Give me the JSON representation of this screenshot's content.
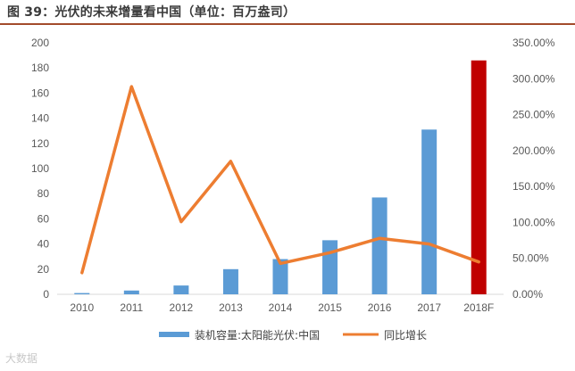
{
  "figure": {
    "title": "图 39：光伏的未来增量看中国（单位：百万盎司）",
    "watermark": "大数据"
  },
  "colors": {
    "bar": "#5b9bd5",
    "highlight_bar": "#c00000",
    "line": "#ed7d31",
    "axis": "#d9d9d9",
    "title_rule": "#a34b2b"
  },
  "chart_data": {
    "type": "bar",
    "categories": [
      "2010",
      "2011",
      "2012",
      "2013",
      "2014",
      "2015",
      "2016",
      "2017",
      "2018F"
    ],
    "series": [
      {
        "name": "装机容量:太阳能光伏:中国",
        "type": "bar",
        "axis": "left",
        "values": [
          1,
          3,
          7,
          20,
          28,
          43,
          77,
          131,
          186
        ],
        "highlight_index": 8
      },
      {
        "name": "同比增长",
        "type": "line",
        "axis": "right",
        "values": [
          30,
          289,
          101,
          185,
          43,
          58,
          78,
          70,
          45
        ]
      }
    ],
    "y_left": {
      "min": 0,
      "max": 200,
      "ticks": [
        0,
        20,
        40,
        60,
        80,
        100,
        120,
        140,
        160,
        180,
        200
      ]
    },
    "y_right": {
      "min": 0,
      "max": 350,
      "tick_labels": [
        "0.00%",
        "50.00%",
        "100.00%",
        "150.00%",
        "200.00%",
        "250.00%",
        "300.00%",
        "350.00%"
      ]
    },
    "legend_position": "bottom",
    "grid": false
  }
}
